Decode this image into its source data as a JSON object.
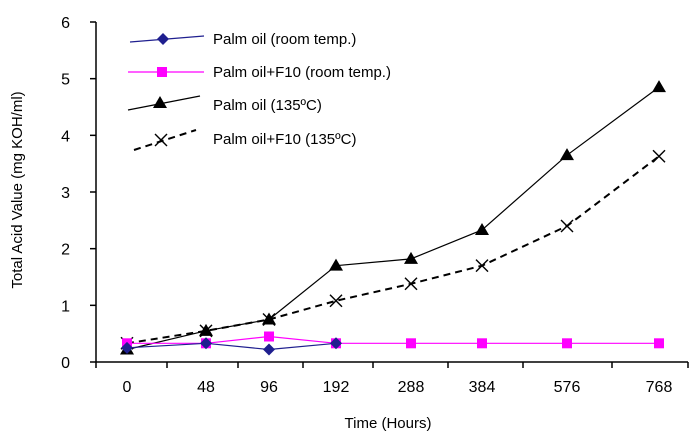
{
  "chart_data": {
    "type": "line",
    "title": "",
    "xlabel": "Time (Hours)",
    "ylabel": "Total Acid Value (mg KOH/ml)",
    "categories": [
      "0",
      "48",
      "96",
      "192",
      "288",
      "384",
      "576",
      "768"
    ],
    "ylim": [
      0,
      6
    ],
    "yticks": [
      "0",
      "1",
      "2",
      "3",
      "4",
      "5",
      "6"
    ],
    "grid": false,
    "legend_position": "top-left",
    "series": [
      {
        "name": "Palm oil (room temp.)",
        "color": "#1f1f8f",
        "marker": "diamond",
        "line_style": "solid",
        "values": [
          0.25,
          0.33,
          0.22,
          0.33,
          null,
          null,
          null,
          null
        ]
      },
      {
        "name": "Palm oil+F10 (room temp.)",
        "color": "#ff00ff",
        "marker": "square",
        "line_style": "solid",
        "values": [
          0.33,
          0.33,
          0.45,
          0.33,
          0.33,
          0.33,
          0.33,
          0.33
        ]
      },
      {
        "name": "Palm oil (135ºC)",
        "color": "#000000",
        "marker": "triangle",
        "line_style": "solid",
        "values": [
          0.22,
          0.55,
          0.75,
          1.7,
          1.82,
          2.33,
          3.65,
          4.85
        ]
      },
      {
        "name": "Palm oil+F10 (135ºC)",
        "color": "#000000",
        "marker": "x",
        "line_style": "dashed",
        "values": [
          0.33,
          0.55,
          0.75,
          1.08,
          1.38,
          1.7,
          2.4,
          3.63
        ]
      }
    ]
  }
}
